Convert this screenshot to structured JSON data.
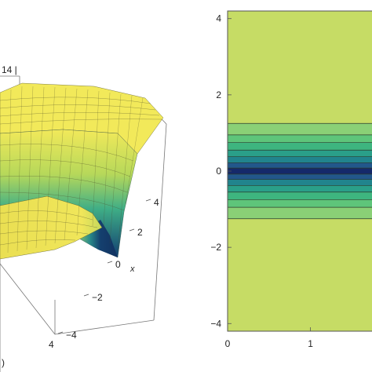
{
  "chart_data": [
    {
      "type": "surface",
      "zlabel_fragment": "14 |",
      "axis_label_x": "x",
      "x_ticks": [
        "4",
        "2",
        "0",
        "−2",
        "−4"
      ],
      "front_tick": "4",
      "colors": {
        "high": "#f2e95a",
        "mid": "#2e9c8e",
        "low": "#123e72"
      },
      "corner_fragment": ")"
    },
    {
      "type": "contour",
      "y_ticks": [
        "4",
        "2",
        "0",
        "−2",
        "−4"
      ],
      "x_ticks": [
        "0",
        "1"
      ],
      "y_tick_values": [
        4,
        2,
        0,
        -2,
        -4
      ],
      "x_tick_values": [
        0,
        1
      ],
      "ylim": [
        -4.2,
        4.2
      ],
      "xlim": [
        0,
        1.8
      ],
      "bands": [
        {
          "from": 1.25,
          "to": 4.2,
          "color": "#c6dc65"
        },
        {
          "from": 0.95,
          "to": 1.25,
          "color": "#8ad076"
        },
        {
          "from": 0.75,
          "to": 0.95,
          "color": "#5ec57a"
        },
        {
          "from": 0.55,
          "to": 0.75,
          "color": "#3eb57f"
        },
        {
          "from": 0.38,
          "to": 0.55,
          "color": "#2a9f89"
        },
        {
          "from": 0.22,
          "to": 0.38,
          "color": "#21848d"
        },
        {
          "from": 0.08,
          "to": 0.22,
          "color": "#22578b"
        },
        {
          "from": -0.08,
          "to": 0.08,
          "color": "#15296a"
        },
        {
          "from": -0.22,
          "to": -0.08,
          "color": "#22578b"
        },
        {
          "from": -0.38,
          "to": -0.22,
          "color": "#21848d"
        },
        {
          "from": -0.55,
          "to": -0.38,
          "color": "#2a9f89"
        },
        {
          "from": -0.75,
          "to": -0.55,
          "color": "#3eb57f"
        },
        {
          "from": -0.95,
          "to": -0.75,
          "color": "#5ec57a"
        },
        {
          "from": -1.25,
          "to": -0.95,
          "color": "#8ad076"
        },
        {
          "from": -4.2,
          "to": -1.25,
          "color": "#c6dc65"
        }
      ]
    }
  ]
}
